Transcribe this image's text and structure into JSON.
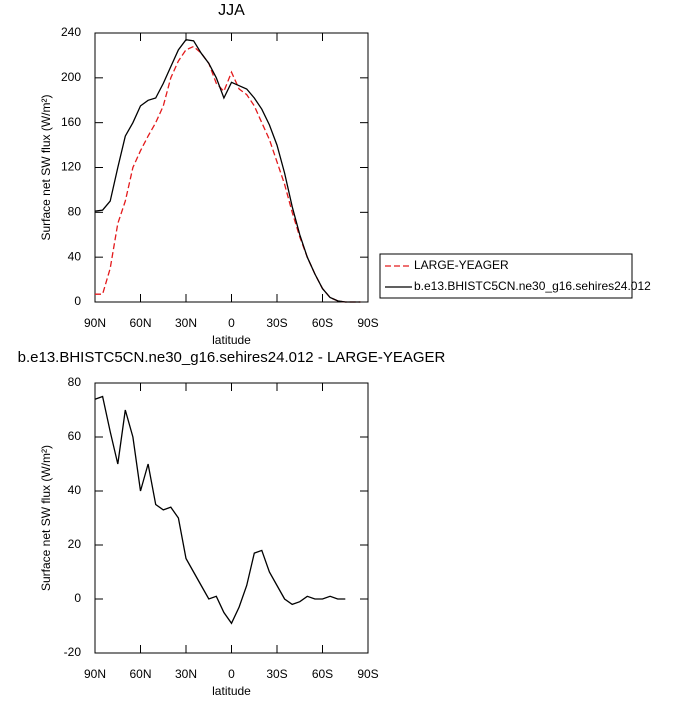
{
  "chart_data": [
    {
      "type": "line",
      "title": "JJA",
      "x_label": "latitude",
      "y_label": "Surface net SW flux (W/m²)",
      "x": [
        90,
        85,
        80,
        75,
        70,
        65,
        60,
        55,
        50,
        45,
        40,
        35,
        30,
        25,
        20,
        15,
        10,
        5,
        0,
        -5,
        -10,
        -15,
        -20,
        -25,
        -30,
        -35,
        -40,
        -45,
        -50,
        -55,
        -60,
        -65,
        -70,
        -75,
        -80,
        -85
      ],
      "series": [
        {
          "name": "LARGE-YEAGER",
          "color": "#e31a1c",
          "dash": true,
          "values": [
            7,
            7,
            30,
            70,
            90,
            120,
            135,
            148,
            160,
            175,
            200,
            215,
            225,
            228,
            222,
            213,
            195,
            188,
            205,
            190,
            185,
            175,
            160,
            145,
            125,
            105,
            80,
            58,
            40,
            25,
            12,
            4,
            1,
            0,
            0,
            0
          ]
        },
        {
          "name": "b.e13.BHISTC5CN.ne30_g16.sehires24.012",
          "color": "#000000",
          "dash": false,
          "values": [
            81,
            82,
            90,
            120,
            148,
            160,
            175,
            180,
            182,
            195,
            210,
            225,
            234,
            233,
            222,
            213,
            200,
            182,
            196,
            193,
            190,
            182,
            172,
            158,
            140,
            115,
            85,
            60,
            40,
            25,
            12,
            4,
            1,
            0,
            0,
            0
          ]
        }
      ],
      "xlim": [
        90,
        -90
      ],
      "xticks": [
        {
          "value": 90,
          "label": "90N"
        },
        {
          "value": 60,
          "label": "60N"
        },
        {
          "value": 30,
          "label": "30N"
        },
        0,
        {
          "value": -30,
          "label": "30S"
        },
        {
          "value": -60,
          "label": "60S"
        },
        {
          "value": -90,
          "label": "90S"
        }
      ],
      "ylim": [
        0,
        240
      ],
      "yticks": [
        0,
        40,
        80,
        120,
        160,
        200,
        240
      ],
      "legend": "right"
    },
    {
      "type": "line",
      "title": "b.e13.BHISTC5CN.ne30_g16.sehires24.012 - LARGE-YEAGER",
      "x_label": "latitude",
      "y_label": "Surface net SW flux (W/m²)",
      "x": [
        90,
        85,
        80,
        75,
        70,
        65,
        60,
        55,
        50,
        45,
        40,
        35,
        30,
        25,
        20,
        15,
        10,
        5,
        0,
        -5,
        -10,
        -15,
        -20,
        -25,
        -30,
        -35,
        -40,
        -45,
        -50,
        -55,
        -60,
        -65,
        -70,
        -75
      ],
      "series": [
        {
          "color": "#000000",
          "dash": false,
          "values": [
            74,
            75,
            62,
            50,
            70,
            60,
            40,
            50,
            35,
            33,
            34,
            30,
            15,
            10,
            5,
            0,
            1,
            -5,
            -9,
            -3,
            5,
            17,
            18,
            10,
            5,
            0,
            -2,
            -1,
            1,
            0,
            0,
            1,
            0,
            0
          ]
        }
      ],
      "xlim": [
        90,
        -90
      ],
      "xticks": [
        {
          "value": 90,
          "label": "90N"
        },
        {
          "value": 60,
          "label": "60N"
        },
        {
          "value": 30,
          "label": "30N"
        },
        0,
        {
          "value": -30,
          "label": "30S"
        },
        {
          "value": -60,
          "label": "60S"
        },
        {
          "value": -90,
          "label": "90S"
        }
      ],
      "ylim": [
        -20,
        80
      ],
      "yticks": [
        -20,
        0,
        20,
        40,
        60,
        80
      ]
    }
  ]
}
